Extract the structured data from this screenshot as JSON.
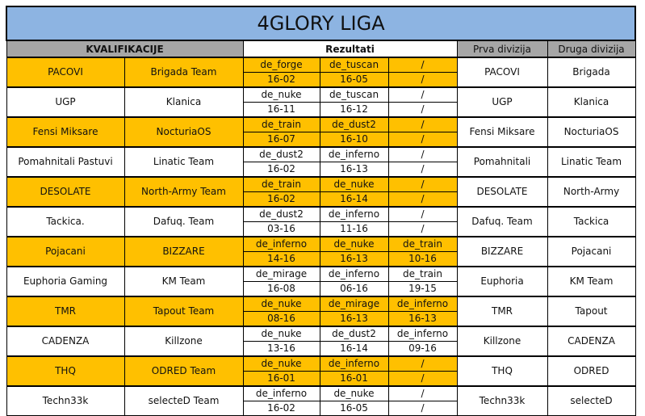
{
  "title": "4GLORY LIGA",
  "headers": {
    "kvalifikacije": "KVALIFIKACIJE",
    "rezultati": "Rezultati",
    "prva": "Prva divizija",
    "druga": "Druga divizija"
  },
  "colors": {
    "title": "#8DB4E2",
    "header": "#A6A6A6",
    "highlight": "#FFC000"
  },
  "rows": [
    {
      "t1": "PACOVI",
      "t2": "Brigada Team",
      "maps": [
        "de_forge",
        "de_tuscan",
        "/"
      ],
      "scores": [
        "16-02",
        "16-05",
        "/"
      ],
      "prva": "PACOVI",
      "druga": "Brigada",
      "hl": true
    },
    {
      "t1": "UGP",
      "t2": "Klanica",
      "maps": [
        "de_nuke",
        "de_tuscan",
        "/"
      ],
      "scores": [
        "16-11",
        "16-12",
        "/"
      ],
      "prva": "UGP",
      "druga": "Klanica",
      "hl": false
    },
    {
      "t1": "Fensi Miksare",
      "t2": "NocturiaOS",
      "maps": [
        "de_train",
        "de_dust2",
        "/"
      ],
      "scores": [
        "16-07",
        "16-10",
        "/"
      ],
      "prva": "Fensi Miksare",
      "druga": "NocturiaOS",
      "hl": true
    },
    {
      "t1": "Pomahnitali Pastuvi",
      "t2": "Linatic Team",
      "maps": [
        "de_dust2",
        "de_inferno",
        "/"
      ],
      "scores": [
        "16-02",
        "16-13",
        "/"
      ],
      "prva": "Pomahnitali",
      "druga": "Linatic Team",
      "hl": false
    },
    {
      "t1": "DESOLATE",
      "t2": "North-Army Team",
      "maps": [
        "de_train",
        "de_nuke",
        "/"
      ],
      "scores": [
        "16-02",
        "16-14",
        "/"
      ],
      "prva": "DESOLATE",
      "druga": "North-Army",
      "hl": true
    },
    {
      "t1": "Tackica.",
      "t2": "Dafuq. Team",
      "maps": [
        "de_dust2",
        "de_inferno",
        "/"
      ],
      "scores": [
        "03-16",
        "11-16",
        "/"
      ],
      "prva": "Dafuq. Team",
      "druga": "Tackica",
      "hl": false
    },
    {
      "t1": "Pojacani",
      "t2": "BIZZARE",
      "maps": [
        "de_inferno",
        "de_nuke",
        "de_train"
      ],
      "scores": [
        "14-16",
        "16-13",
        "10-16"
      ],
      "prva": "BIZZARE",
      "druga": "Pojacani",
      "hl": true
    },
    {
      "t1": "Euphoria Gaming",
      "t2": "KM Team",
      "maps": [
        "de_mirage",
        "de_inferno",
        "de_train"
      ],
      "scores": [
        "16-08",
        "06-16",
        "19-15"
      ],
      "prva": "Euphoria",
      "druga": "KM Team",
      "hl": false
    },
    {
      "t1": "TMR",
      "t2": "Tapout Team",
      "maps": [
        "de_nuke",
        "de_mirage",
        "de_inferno"
      ],
      "scores": [
        "08-16",
        "16-13",
        "16-13"
      ],
      "prva": "TMR",
      "druga": "Tapout",
      "hl": true
    },
    {
      "t1": "CADENZA",
      "t2": "Killzone",
      "maps": [
        "de_nuke",
        "de_dust2",
        "de_inferno"
      ],
      "scores": [
        "13-16",
        "16-14",
        "09-16"
      ],
      "prva": "Killzone",
      "druga": "CADENZA",
      "hl": false
    },
    {
      "t1": "THQ",
      "t2": "ODRED Team",
      "maps": [
        "de_nuke",
        "de_inferno",
        "/"
      ],
      "scores": [
        "16-01",
        "16-01",
        "/"
      ],
      "prva": "THQ",
      "druga": "ODRED",
      "hl": true
    },
    {
      "t1": "Techn33k",
      "t2": "selecteD Team",
      "maps": [
        "de_inferno",
        "de_nuke",
        "/"
      ],
      "scores": [
        "16-02",
        "16-05",
        "/"
      ],
      "prva": "Techn33k",
      "druga": "selecteD",
      "hl": false
    }
  ]
}
